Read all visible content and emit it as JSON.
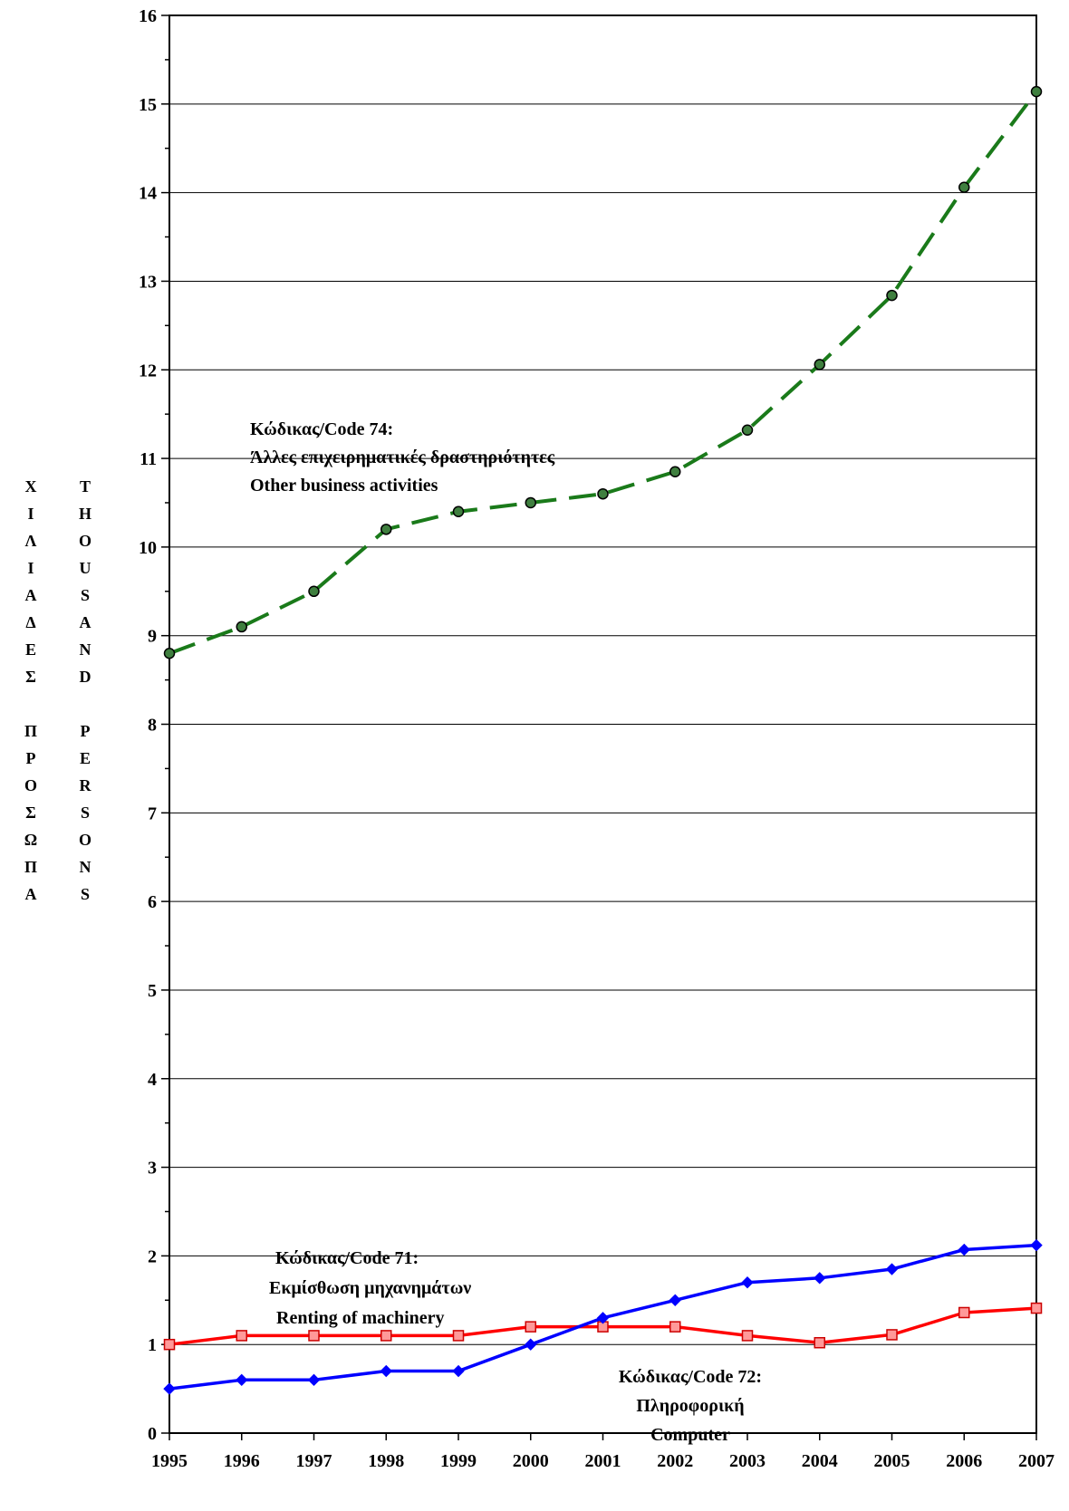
{
  "chart_data": {
    "type": "line",
    "x": [
      "1995",
      "1996",
      "1997",
      "1998",
      "1999",
      "2000",
      "2001",
      "2002",
      "2003",
      "2004",
      "2005",
      "2006",
      "2007"
    ],
    "ylim": [
      0,
      16
    ],
    "yticks": [
      "0",
      "1",
      "2",
      "3",
      "4",
      "5",
      "6",
      "7",
      "8",
      "9",
      "10",
      "11",
      "12",
      "13",
      "14",
      "15",
      "16"
    ],
    "ylabel_greek": [
      "Χ",
      "Ι",
      "Λ",
      "Ι",
      "Α",
      "Δ",
      "Ε",
      "Σ",
      "",
      "Π",
      "Ρ",
      "Ο",
      "Σ",
      "Ω",
      "Π",
      "Α"
    ],
    "ylabel_english": [
      "T",
      "H",
      "O",
      "U",
      "S",
      "A",
      "N",
      "D",
      "",
      "P",
      "E",
      "R",
      "S",
      "O",
      "N",
      "S"
    ],
    "grid": "horizontal",
    "series": [
      {
        "key": "code74",
        "color": "#1a7a1a",
        "style": "dashed",
        "marker": "circle",
        "values": [
          8.8,
          9.1,
          9.5,
          10.2,
          10.4,
          10.5,
          10.6,
          10.85,
          11.32,
          12.06,
          12.84,
          14.06,
          15.14
        ]
      },
      {
        "key": "code71",
        "color": "#ff0000",
        "style": "solid",
        "marker": "square",
        "values": [
          1.0,
          1.1,
          1.1,
          1.1,
          1.1,
          1.2,
          1.2,
          1.2,
          1.1,
          1.02,
          1.11,
          1.36,
          1.41
        ]
      },
      {
        "key": "code72",
        "color": "#0000ff",
        "style": "solid",
        "marker": "diamond",
        "values": [
          0.5,
          0.6,
          0.6,
          0.7,
          0.7,
          1.0,
          1.3,
          1.5,
          1.7,
          1.75,
          1.85,
          2.07,
          2.12
        ]
      }
    ],
    "annotations": {
      "code74": [
        "Κώδικας/Code 74:",
        "Άλλες επιχειρηματικές δραστηριότητες",
        "Other business activities"
      ],
      "code71": [
        "Κώδικας/Code 71:",
        "Εκμίσθωση μηχανημάτων",
        "Renting of machinery"
      ],
      "code72": [
        "Κώδικας/Code 72:",
        "Πληροφορική",
        "Computer"
      ]
    }
  }
}
